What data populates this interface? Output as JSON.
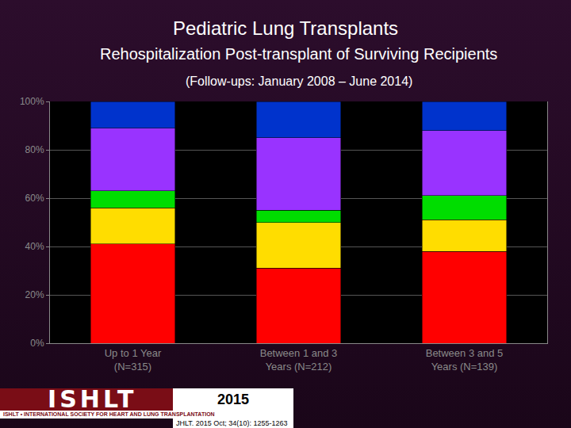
{
  "chart_data": {
    "type": "bar",
    "title": "Pediatric Lung Transplants",
    "subtitle": "Rehospitalization Post-transplant of Surviving Recipients",
    "subtitle2": "(Follow-ups: January 2008 – June 2014)",
    "categories": [
      "Up to 1 Year\n(N=315)",
      "Between 1 and 3\nYears (N=212)",
      "Between 3 and 5\nYears (N=139)"
    ],
    "series": [
      {
        "color": "#ff0000",
        "values": [
          41,
          31,
          38
        ]
      },
      {
        "color": "#ffdd00",
        "values": [
          15,
          19,
          13
        ]
      },
      {
        "color": "#00dd00",
        "values": [
          7,
          5,
          10
        ]
      },
      {
        "color": "#9933ff",
        "values": [
          26,
          30,
          27
        ]
      },
      {
        "color": "#0033cc",
        "values": [
          11,
          15,
          12
        ]
      }
    ],
    "stacked": true,
    "ylim": [
      0,
      100
    ],
    "yticks": [
      {
        "value": 0,
        "label": "0%"
      },
      {
        "value": 20,
        "label": "20%"
      },
      {
        "value": 40,
        "label": "40%"
      },
      {
        "value": 60,
        "label": "60%"
      },
      {
        "value": 80,
        "label": "80%"
      },
      {
        "value": 100,
        "label": "100%"
      }
    ],
    "grid": true,
    "footer": {
      "logo": "ISHLT",
      "organization": "ISHLT • INTERNATIONAL SOCIETY FOR HEART AND LUNG TRANSPLANTATION",
      "year": "2015",
      "citation": "JHLT. 2015 Oct; 34(10): 1255-1263"
    }
  }
}
